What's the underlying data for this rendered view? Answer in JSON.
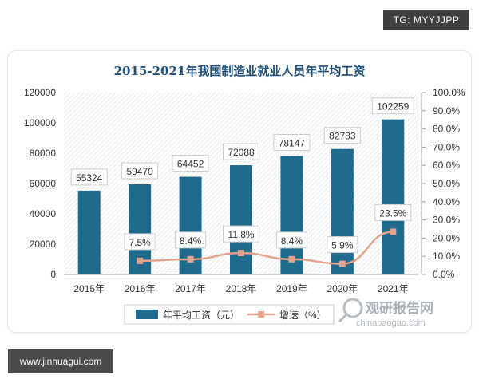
{
  "watermark_top": "TG: MYYJJPP",
  "watermark_bottom": "www.jinhuagui.com",
  "logo": {
    "cn": "观研报告网",
    "en": "chinabaogao.com"
  },
  "colors": {
    "bar": "#1f6b8e",
    "line": "#e4a38a",
    "marker": "#e4a38a",
    "text": "#333333",
    "title": "#1f4e79"
  },
  "chart_data": {
    "type": "bar",
    "title": "2015-2021年我国制造业就业人员年平均工资",
    "categories": [
      "2015年",
      "2016年",
      "2017年",
      "2018年",
      "2019年",
      "2020年",
      "2021年"
    ],
    "series": [
      {
        "name": "年平均工资（元）",
        "type": "bar",
        "axis": "left",
        "values": [
          55324,
          59470,
          64452,
          72088,
          78147,
          82783,
          102259
        ],
        "labels": [
          "55324",
          "59470",
          "64452",
          "72088",
          "78147",
          "82783",
          "102259"
        ]
      },
      {
        "name": "增速（%）",
        "type": "line",
        "axis": "right",
        "values": [
          null,
          7.5,
          8.4,
          11.8,
          8.4,
          5.9,
          23.5
        ],
        "labels": [
          "",
          "7.5%",
          "8.4%",
          "11.8%",
          "8.4%",
          "5.9%",
          "23.5%"
        ]
      }
    ],
    "ylim_left": [
      0,
      120000
    ],
    "yticks_left": [
      "0",
      "20000",
      "40000",
      "60000",
      "80000",
      "100000",
      "120000"
    ],
    "ylim_right": [
      0,
      100
    ],
    "yticks_right": [
      "0.0%",
      "10.0%",
      "20.0%",
      "30.0%",
      "40.0%",
      "50.0%",
      "60.0%",
      "70.0%",
      "80.0%",
      "90.0%",
      "100.0%"
    ],
    "legend": [
      "年平均工资（元）",
      "增速（%）"
    ],
    "legend_position": "bottom",
    "grid": false
  }
}
